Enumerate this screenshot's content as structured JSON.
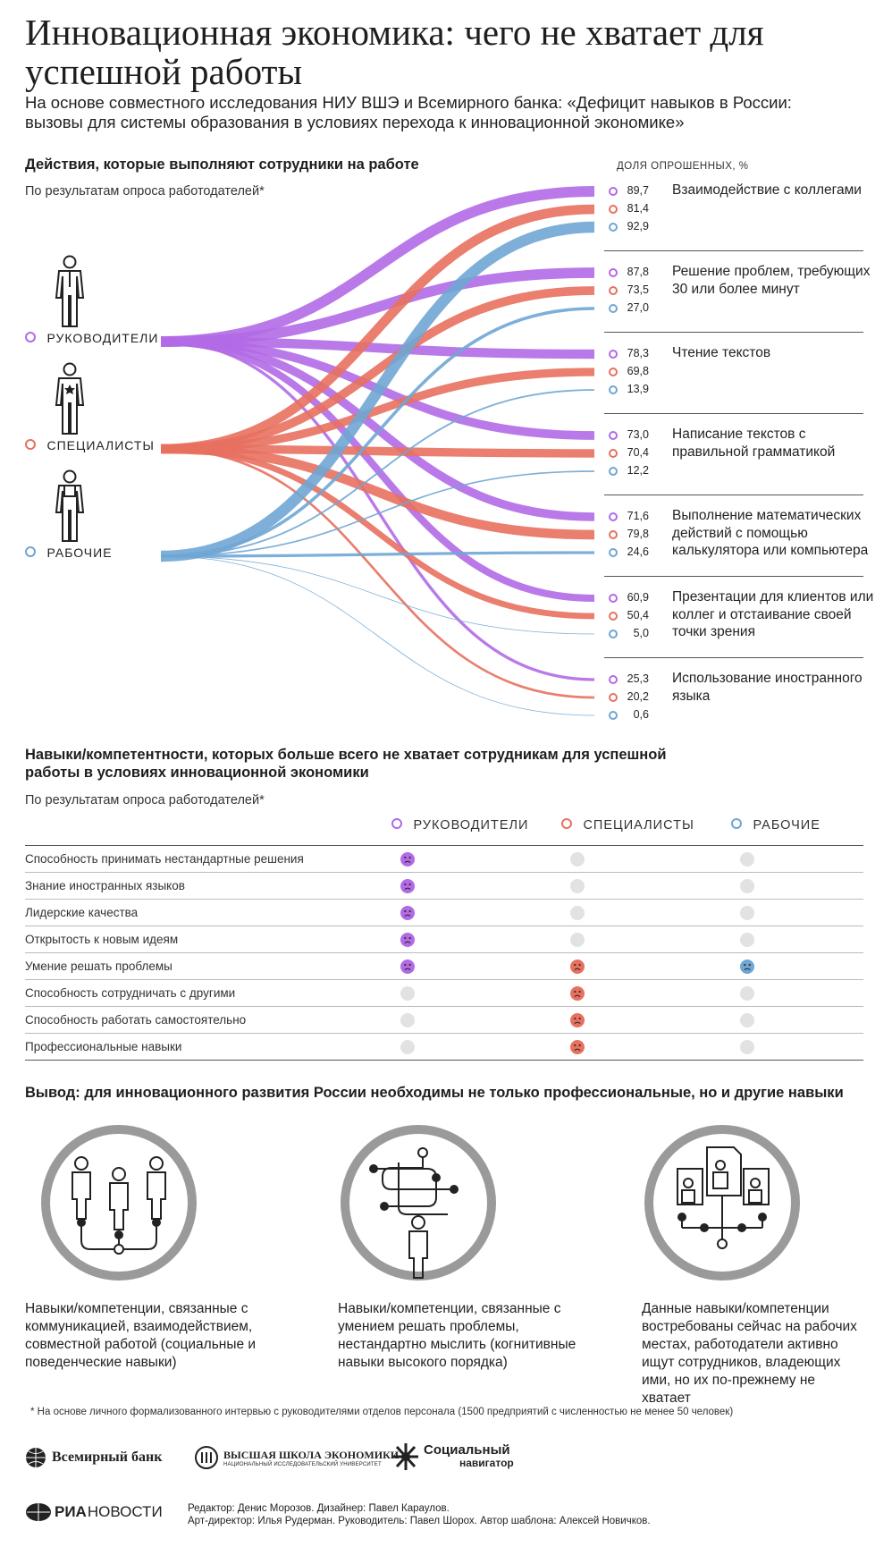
{
  "title": "Инновационная экономика: чего не хватает для успешной работы",
  "subtitle": "На основе совместного исследования НИУ ВШЭ и Всемирного банка: «Дефицит навыков в России: вызовы для системы образования в условиях перехода к инновационной экономике»",
  "colors": {
    "managers": "#b26ae6",
    "specialists": "#e8705f",
    "workers": "#6fa6d4",
    "neutral": "#e2e2e2"
  },
  "section1": {
    "heading": "Действия, которые выполняют сотрудники на работе",
    "note": "По результатам опроса работодателей*",
    "unit_label": "ДОЛЯ ОПРОШЕННЫХ, %"
  },
  "groups": [
    {
      "key": "managers",
      "label": "РУКОВОДИТЕЛИ",
      "icon": "manager-figure-icon"
    },
    {
      "key": "specialists",
      "label": "СПЕЦИАЛИСТЫ",
      "icon": "specialist-figure-icon"
    },
    {
      "key": "workers",
      "label": "РАБОЧИЕ",
      "icon": "worker-figure-icon"
    }
  ],
  "chart_data": {
    "type": "flow",
    "unit": "ДОЛЯ ОПРОШЕННЫХ, %",
    "series": [
      {
        "name": "РУКОВОДИТЕЛИ",
        "values": [
          89.7,
          87.8,
          78.3,
          73.0,
          71.6,
          60.9,
          25.3
        ]
      },
      {
        "name": "СПЕЦИАЛИСТЫ",
        "values": [
          81.4,
          73.5,
          69.8,
          70.4,
          79.8,
          50.4,
          20.2
        ]
      },
      {
        "name": "РАБОЧИЕ",
        "values": [
          92.9,
          27.0,
          13.9,
          12.2,
          24.6,
          5.0,
          0.6
        ]
      }
    ],
    "categories": [
      "Взаимодействие с коллегами",
      "Решение проблем, требующих 30 или более минут",
      "Чтение текстов",
      "Написание текстов с правильной грамматикой",
      "Выполнение математических действий с помощью калькулятора или компьютера",
      "Презентации для клиентов или коллег и отстаивание своей точки зрения",
      "Использование иностранного языка"
    ],
    "value_labels": [
      [
        "89,7",
        "81,4",
        "92,9"
      ],
      [
        "87,8",
        "73,5",
        "27,0"
      ],
      [
        "78,3",
        "69,8",
        "13,9"
      ],
      [
        "73,0",
        "70,4",
        "12,2"
      ],
      [
        "71,6",
        "79,8",
        "24,6"
      ],
      [
        "60,9",
        "50,4",
        "5,0"
      ],
      [
        "25,3",
        "20,2",
        "0,6"
      ]
    ]
  },
  "section2": {
    "heading": "Навыки/компетентности, которых больше всего не хватает сотрудникам для успешной работы в условиях инновационной экономики",
    "note": "По результатам опроса работодателей*",
    "rows": [
      {
        "label": "Способность принимать нестандартные решения",
        "marks": [
          1,
          0,
          0
        ]
      },
      {
        "label": "Знание иностранных языков",
        "marks": [
          1,
          0,
          0
        ]
      },
      {
        "label": "Лидерские качества",
        "marks": [
          1,
          0,
          0
        ]
      },
      {
        "label": "Открытость к новым идеям",
        "marks": [
          1,
          0,
          0
        ]
      },
      {
        "label": "Умение решать проблемы",
        "marks": [
          1,
          1,
          1
        ]
      },
      {
        "label": "Способность сотрудничать с другими",
        "marks": [
          0,
          1,
          0
        ]
      },
      {
        "label": "Способность работать самостоятельно",
        "marks": [
          0,
          1,
          0
        ]
      },
      {
        "label": "Профессиональные навыки",
        "marks": [
          0,
          1,
          0
        ]
      }
    ]
  },
  "section3": {
    "heading": "Вывод: для инновационного развития России необходимы не только профессиональные, но и другие навыки",
    "items": [
      {
        "text": "Навыки/компетенции, связанные с коммуникацией, взаимодействием, совместной работой (социальные и поведенческие навыки)",
        "icon": "team-network-icon"
      },
      {
        "text": "Навыки/компетенции, связанные с умением решать проблемы, нестандартно мыслить (когнитивные навыки высокого порядка)",
        "icon": "problem-solving-icon"
      },
      {
        "text": "Данные навыки/компетенции востребованы сейчас на рабочих местах, работодатели активно ищут сотрудников, владеющих ими, но их по-прежнему не хватает",
        "icon": "job-documents-icon"
      }
    ]
  },
  "footnote": "* На основе личного формализованного интервью с руководителями отделов персонала (1500 предприятий с численностью не менее 50 человек)",
  "logos": {
    "worldbank": "Всемирный банк",
    "hse_line1": "ВЫСШАЯ ШКОЛА ЭКОНОМИКИ",
    "hse_line2": "НАЦИОНАЛЬНЫЙ ИССЛЕДОВАТЕЛЬСКИЙ УНИВЕРСИТЕТ",
    "social_line1": "Социальный",
    "social_line2": "навигатор",
    "ria_left": "РИА",
    "ria_right": "НОВОСТИ"
  },
  "credits": {
    "line1": "Редактор: Денис Морозов. Дизайнер: Павел Караулов.",
    "line2": "Арт-директор: Илья Рудерман. Руководитель: Павел Шорох. Автор шаблона: Алексей Новичков."
  }
}
